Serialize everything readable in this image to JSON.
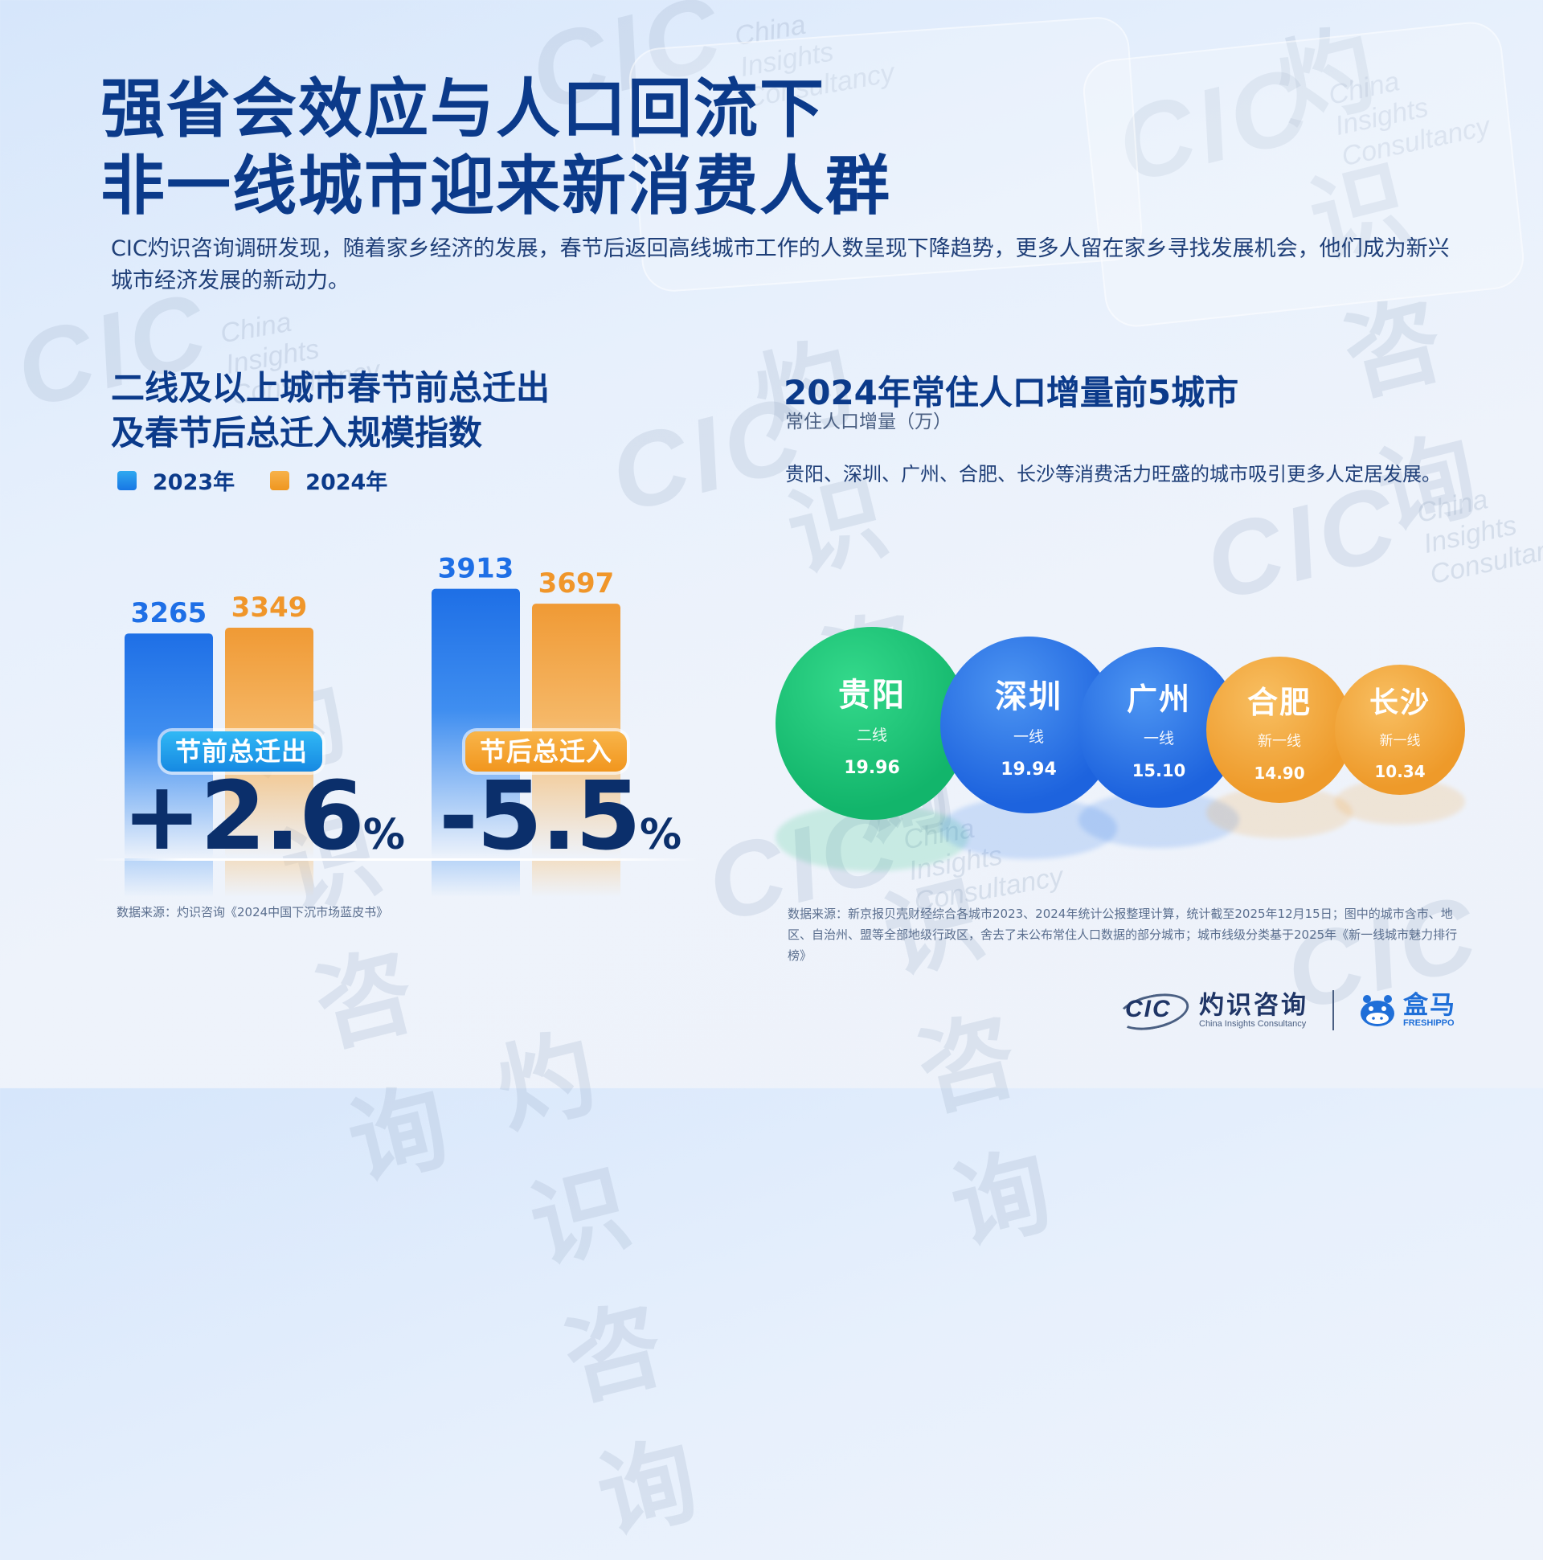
{
  "header": {
    "title_line1": "强省会效应与人口回流下",
    "title_line2": "非一线城市迎来新消费人群",
    "intro": "CIC灼识咨询调研发现，随着家乡经济的发展，春节后返回高线城市工作的人数呈现下降趋势，更多人留在家乡寻找发展机会，他们成为新兴城市经济发展的新动力。"
  },
  "left_section": {
    "title_line1": "二线及以上城市春节前总迁出",
    "title_line2": "及春节后总迁入规模指数",
    "groups": [
      {
        "label": "节前总迁出",
        "change_value": "+2.6",
        "change_unit": "%"
      },
      {
        "label": "节后总迁入",
        "change_value": "-5.5",
        "change_unit": "%"
      }
    ],
    "source": "数据来源：灼识咨询《2024中国下沉市场蓝皮书》"
  },
  "right_section": {
    "title": "2024年常住人口增量前5城市",
    "unit": "常住人口增量（万）",
    "description": "贵阳、深圳、广州、合肥、长沙等消费活力旺盛的城市吸引更多人定居发展。",
    "source": "数据来源：新京报贝壳财经综合各城市2023、2024年统计公报整理计算，统计截至2025年12月15日；图中的城市含市、地区、自治州、盟等全部地级行政区，舍去了未公布常住人口数据的部分城市；城市线级分类基于2025年《新一线城市魅力排行榜》"
  },
  "chart_data": [
    {
      "type": "bar",
      "categories": [
        "节前总迁出",
        "节后总迁入"
      ],
      "series": [
        {
          "name": "2023年",
          "values": [
            3265,
            3913
          ],
          "color": "#1e74e6"
        },
        {
          "name": "2024年",
          "values": [
            3349,
            3697
          ],
          "color": "#f0a03a"
        }
      ],
      "legend_position": "top-left",
      "grid": false
    },
    {
      "type": "bubble",
      "items": [
        {
          "city": "贵阳",
          "tier": "二线",
          "value": 19.96,
          "color": "#1fc27a"
        },
        {
          "city": "深圳",
          "tier": "一线",
          "value": 19.94,
          "color": "#2a76e8"
        },
        {
          "city": "广州",
          "tier": "一线",
          "value": 15.1,
          "color": "#2a76e8"
        },
        {
          "city": "合肥",
          "tier": "新一线",
          "value": 14.9,
          "color": "#f2a33a"
        },
        {
          "city": "长沙",
          "tier": "新一线",
          "value": 10.34,
          "color": "#f2a33a"
        }
      ]
    }
  ],
  "footer": {
    "cic_mark": "CIC",
    "cic_cn": "灼识咨询",
    "cic_en": "China Insights Consultancy",
    "hippo_cn": "盒马",
    "hippo_en": "FRESHIPPO"
  }
}
